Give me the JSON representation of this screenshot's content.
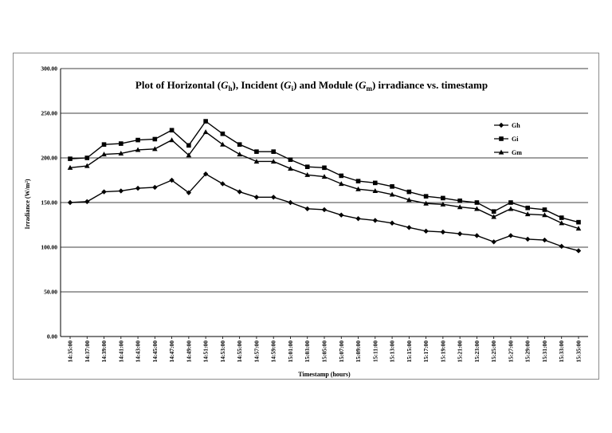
{
  "chart_data": {
    "type": "line",
    "title_parts": [
      "Plot of Horizontal (",
      "G",
      "h",
      "), Incident (",
      "G",
      "i",
      ") and Module (",
      "G",
      "m",
      ") irradiance vs. timestamp"
    ],
    "xlabel": "Timestamp (hours)",
    "ylabel": "Irradiance (W/m²)",
    "ylim": [
      0,
      300
    ],
    "y_ticks": [
      "0.00",
      "50.00",
      "100.00",
      "150.00",
      "200.00",
      "250.00",
      "300.00"
    ],
    "y_tick_values": [
      0,
      50,
      100,
      150,
      200,
      250,
      300
    ],
    "grid": "horizontal",
    "legend_position": "top-right",
    "categories": [
      "14:35:00",
      "14:37:00",
      "14:39:00",
      "14:41:00",
      "14:43:00",
      "14:45:00",
      "14:47:00",
      "14:49:00",
      "14:51:00",
      "14:53:00",
      "14:55:00",
      "14:57:00",
      "14:59:00",
      "15:01:00",
      "15:03:00",
      "15:05:00",
      "15:07:00",
      "15:09:00",
      "15:11:00",
      "15:13:00",
      "15:15:00",
      "15:17:00",
      "15:19:00",
      "15:21:00",
      "15:23:00",
      "15:25:00",
      "15:27:00",
      "15:29:00",
      "15:31:00",
      "15:33:00",
      "15:35:00"
    ],
    "series": [
      {
        "name": "Gh",
        "marker": "diamond",
        "values": [
          150,
          151,
          162,
          163,
          166,
          167,
          175,
          161,
          182,
          171,
          162,
          156,
          156,
          150,
          143,
          142,
          136,
          132,
          130,
          127,
          122,
          118,
          117,
          115,
          113,
          106,
          113,
          109,
          108,
          101,
          96
        ]
      },
      {
        "name": "Gi",
        "marker": "square",
        "values": [
          199,
          200,
          215,
          216,
          220,
          221,
          231,
          214,
          241,
          227,
          215,
          207,
          207,
          198,
          190,
          189,
          180,
          174,
          172,
          168,
          162,
          157,
          155,
          152,
          150,
          140,
          150,
          144,
          142,
          133,
          128
        ]
      },
      {
        "name": "Gm",
        "marker": "triangle",
        "values": [
          189,
          191,
          204,
          205,
          209,
          210,
          220,
          203,
          229,
          215,
          204,
          196,
          196,
          188,
          181,
          179,
          171,
          165,
          163,
          159,
          153,
          149,
          148,
          145,
          143,
          134,
          143,
          137,
          136,
          127,
          121
        ]
      }
    ]
  }
}
